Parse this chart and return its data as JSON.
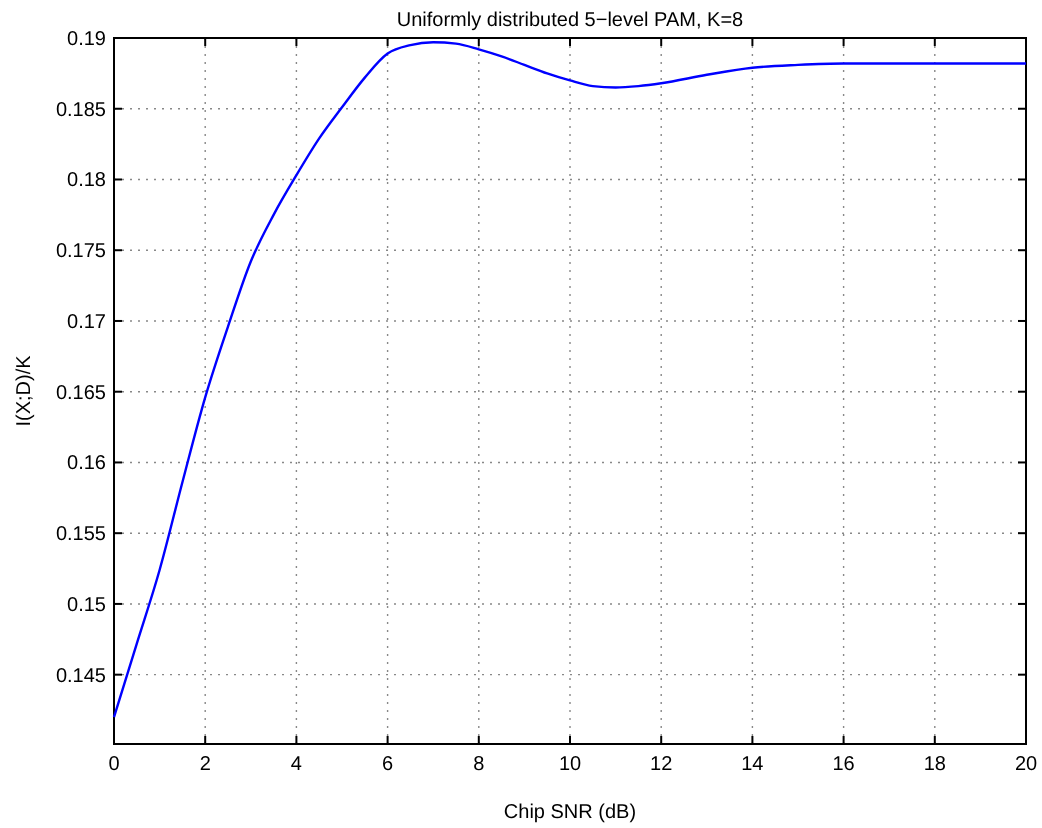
{
  "chart_data": {
    "type": "line",
    "title": "Uniformly distributed 5−level PAM, K=8",
    "xlabel": "Chip SNR (dB)",
    "ylabel": "I(X;D)/K",
    "x": [
      0,
      0.5,
      1,
      1.5,
      2,
      2.5,
      3,
      3.5,
      4,
      4.5,
      5,
      5.5,
      6,
      6.5,
      7,
      7.5,
      8,
      8.5,
      9,
      9.5,
      10,
      10.5,
      11,
      11.5,
      12,
      13,
      14,
      15,
      16,
      17,
      18,
      19,
      20
    ],
    "series": [
      {
        "color": "#0000ff",
        "values": [
          0.142,
          0.1472,
          0.1524,
          0.1586,
          0.1646,
          0.1696,
          0.1742,
          0.1775,
          0.1803,
          0.1829,
          0.1851,
          0.1872,
          0.1889,
          0.1895,
          0.1897,
          0.1896,
          0.1892,
          0.1887,
          0.1881,
          0.1875,
          0.187,
          0.1866,
          0.1865,
          0.1866,
          0.1868,
          0.1874,
          0.1879,
          0.1881,
          0.1882,
          0.1882,
          0.1882,
          0.1882,
          0.1882
        ]
      }
    ],
    "xlim": [
      0,
      20
    ],
    "xticks": [
      0,
      2,
      4,
      6,
      8,
      10,
      12,
      14,
      16,
      18,
      20
    ],
    "ylim": [
      0.1401,
      0.19
    ],
    "yticks": [
      0.145,
      0.15,
      0.155,
      0.16,
      0.165,
      0.17,
      0.175,
      0.18,
      0.185,
      0.19
    ],
    "grid": true,
    "line_style": "solid",
    "marker": "none"
  }
}
